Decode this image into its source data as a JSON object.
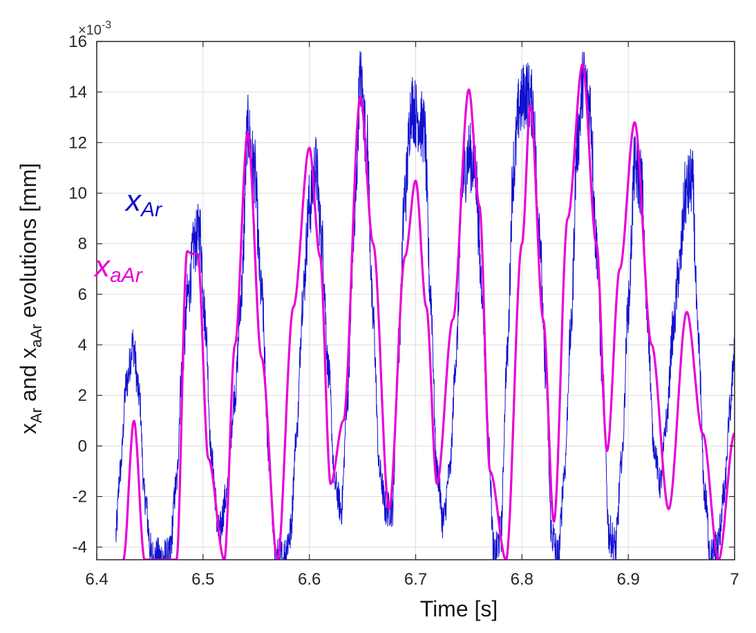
{
  "chart_data": {
    "type": "line",
    "xlabel": "Time [s]",
    "ylabel_parts": {
      "x1": "x",
      "sub1": "Ar",
      "and": " and ",
      "x2": "x",
      "sub2": "aAr",
      "rest": " evolutions [mm]"
    },
    "y_multiplier": {
      "base": "×10",
      "exp": "-3"
    },
    "xlim": [
      6.4,
      7.0
    ],
    "ylim": [
      -4.5,
      16
    ],
    "x_ticks": [
      6.4,
      6.5,
      6.6,
      6.7,
      6.8,
      6.9,
      7.0
    ],
    "x_tick_labels": [
      "6.4",
      "6.5",
      "6.6",
      "6.7",
      "6.8",
      "6.9",
      "7"
    ],
    "y_ticks": [
      -4,
      -2,
      0,
      2,
      4,
      6,
      8,
      10,
      12,
      14,
      16
    ],
    "y_tick_labels": [
      "-4",
      "-2",
      "0",
      "2",
      "4",
      "6",
      "8",
      "10",
      "12",
      "14",
      "16"
    ],
    "grid": true,
    "series": [
      {
        "name": "xAr",
        "label_main": "x",
        "label_sub": "Ar",
        "color": "#1010d0",
        "style": "noisy",
        "x": [
          6.418,
          6.422,
          6.428,
          6.434,
          6.44,
          6.445,
          6.452,
          6.46,
          6.468,
          6.475,
          6.48,
          6.486,
          6.492,
          6.497,
          6.502,
          6.508,
          6.515,
          6.522,
          6.53,
          6.536,
          6.542,
          6.548,
          6.555,
          6.562,
          6.568,
          6.575,
          6.582,
          6.588,
          6.594,
          6.6,
          6.606,
          6.612,
          6.618,
          6.624,
          6.63,
          6.636,
          6.642,
          6.648,
          6.654,
          6.66,
          6.666,
          6.672,
          6.678,
          6.684,
          6.69,
          6.696,
          6.702,
          6.708,
          6.714,
          6.72,
          6.726,
          6.732,
          6.738,
          6.744,
          6.75,
          6.756,
          6.762,
          6.768,
          6.774,
          6.78,
          6.786,
          6.792,
          6.798,
          6.804,
          6.81,
          6.816,
          6.822,
          6.828,
          6.834,
          6.84,
          6.846,
          6.852,
          6.858,
          6.864,
          6.87,
          6.876,
          6.882,
          6.888,
          6.894,
          6.9,
          6.906,
          6.912,
          6.918,
          6.924,
          6.93,
          6.936,
          6.942,
          6.948,
          6.954,
          6.96,
          6.966,
          6.972,
          6.978,
          6.984,
          6.99,
          6.996,
          7.0
        ],
        "y": [
          -3.5,
          -1.0,
          2.5,
          4.0,
          2.0,
          -2.0,
          -4.5,
          -4.5,
          -4.5,
          -1.5,
          3.0,
          6.0,
          8.0,
          8.5,
          5.0,
          -0.5,
          -3.5,
          -2.0,
          2.0,
          6.0,
          12.5,
          11.0,
          6.0,
          -0.5,
          -4.5,
          -4.5,
          -3.5,
          0.5,
          6.0,
          9.5,
          11.0,
          8.0,
          3.0,
          -1.5,
          -2.5,
          2.0,
          8.5,
          14.5,
          12.0,
          5.0,
          -1.0,
          -2.5,
          -2.5,
          4.0,
          10.0,
          13.5,
          13.0,
          12.5,
          6.0,
          -1.0,
          -3.0,
          -1.0,
          3.5,
          10.5,
          11.5,
          11.0,
          6.5,
          0.5,
          -4.5,
          -3.5,
          3.5,
          11.0,
          13.5,
          14.0,
          13.5,
          9.0,
          3.0,
          -3.5,
          -4.5,
          -1.0,
          4.5,
          12.0,
          14.5,
          13.5,
          8.0,
          2.5,
          -3.5,
          -4.0,
          -0.5,
          5.5,
          11.0,
          10.5,
          5.0,
          0.0,
          -1.5,
          1.0,
          4.5,
          7.0,
          10.0,
          10.5,
          4.0,
          -2.0,
          -4.5,
          -4.0,
          -2.0,
          1.5,
          4.0
        ]
      },
      {
        "name": "xaAr",
        "label_main": "x",
        "label_sub": "aAr",
        "color": "#e800d8",
        "style": "smooth",
        "x": [
          6.425,
          6.435,
          6.445,
          6.455,
          6.465,
          6.475,
          6.485,
          6.49,
          6.495,
          6.505,
          6.52,
          6.53,
          6.542,
          6.555,
          6.57,
          6.585,
          6.6,
          6.61,
          6.62,
          6.632,
          6.648,
          6.66,
          6.675,
          6.69,
          6.7,
          6.71,
          6.72,
          6.735,
          6.75,
          6.76,
          6.77,
          6.785,
          6.8,
          6.808,
          6.82,
          6.83,
          6.843,
          6.857,
          6.87,
          6.88,
          6.892,
          6.906,
          6.922,
          6.938,
          6.955,
          6.97,
          6.985,
          7.0
        ],
        "y": [
          -4.5,
          1.0,
          -4.5,
          -4.5,
          -4.5,
          -4.5,
          7.7,
          7.6,
          7.6,
          -0.5,
          -4.5,
          4.0,
          12.4,
          3.5,
          -4.5,
          5.5,
          11.8,
          7.5,
          -1.5,
          1.0,
          13.8,
          8.0,
          -2.5,
          7.5,
          10.5,
          5.5,
          -1.5,
          5.0,
          14.1,
          9.5,
          -1.0,
          -4.5,
          8.0,
          13.5,
          5.0,
          -3.0,
          9.0,
          15.1,
          8.0,
          -0.2,
          7.0,
          12.8,
          4.0,
          -2.5,
          5.3,
          0.5,
          -4.5,
          0.5
        ]
      }
    ]
  }
}
